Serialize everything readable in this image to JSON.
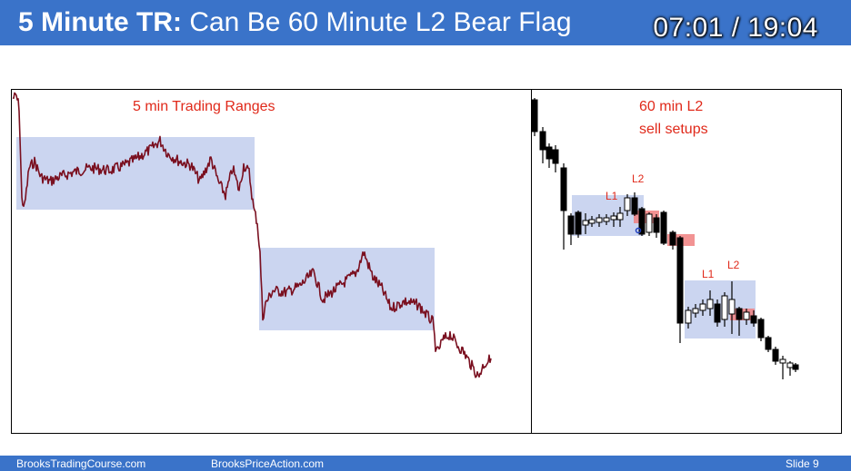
{
  "header": {
    "title_bold": "5 Minute TR:",
    "title_rest": " Can Be 60 Minute L2 Bear Flag",
    "timer": "07:01 / 19:04"
  },
  "left_chart": {
    "label": "5 min Trading Ranges"
  },
  "right_chart": {
    "label_line1": "60 min L2",
    "label_line2": "sell setups",
    "setups": [
      "L1",
      "L2",
      "L1",
      "L2"
    ]
  },
  "footer": {
    "site1": "BrooksTradingCourse.com",
    "site2": "BrooksPriceAction.com",
    "slide": "Slide  9"
  },
  "colors": {
    "header_bar": "#3a73c9",
    "range_box": "#c5d0ee",
    "price_line": "#7a1020",
    "label_red": "#e0291a",
    "sell_zone": "#f08080"
  }
}
